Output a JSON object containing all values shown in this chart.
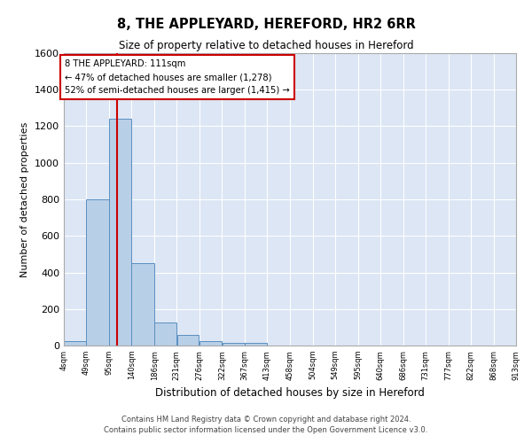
{
  "title": "8, THE APPLEYARD, HEREFORD, HR2 6RR",
  "subtitle": "Size of property relative to detached houses in Hereford",
  "xlabel": "Distribution of detached houses by size in Hereford",
  "ylabel": "Number of detached properties",
  "bar_color": "#b8cfe8",
  "bar_edge_color": "#5a8fc0",
  "background_color": "#dce6f5",
  "grid_color": "#ffffff",
  "vline_x": 111,
  "vline_color": "#cc0000",
  "annotation_line1": "8 THE APPLEYARD: 111sqm",
  "annotation_line2": "← 47% of detached houses are smaller (1,278)",
  "annotation_line3": "52% of semi-detached houses are larger (1,415) →",
  "annotation_box_color": "#cc0000",
  "bins": [
    4,
    49,
    95,
    140,
    186,
    231,
    276,
    322,
    367,
    413,
    458,
    504,
    549,
    595,
    640,
    686,
    731,
    777,
    822,
    868,
    913
  ],
  "bar_heights": [
    25,
    800,
    1240,
    450,
    125,
    58,
    25,
    15,
    15,
    0,
    0,
    0,
    0,
    0,
    0,
    0,
    0,
    0,
    0,
    0
  ],
  "xlim": [
    4,
    913
  ],
  "ylim": [
    0,
    1600
  ],
  "yticks": [
    0,
    200,
    400,
    600,
    800,
    1000,
    1200,
    1400,
    1600
  ],
  "xtick_labels": [
    "4sqm",
    "49sqm",
    "95sqm",
    "140sqm",
    "186sqm",
    "231sqm",
    "276sqm",
    "322sqm",
    "367sqm",
    "413sqm",
    "458sqm",
    "504sqm",
    "549sqm",
    "595sqm",
    "640sqm",
    "686sqm",
    "731sqm",
    "777sqm",
    "822sqm",
    "868sqm",
    "913sqm"
  ],
  "footer_line1": "Contains HM Land Registry data © Crown copyright and database right 2024.",
  "footer_line2": "Contains public sector information licensed under the Open Government Licence v3.0."
}
